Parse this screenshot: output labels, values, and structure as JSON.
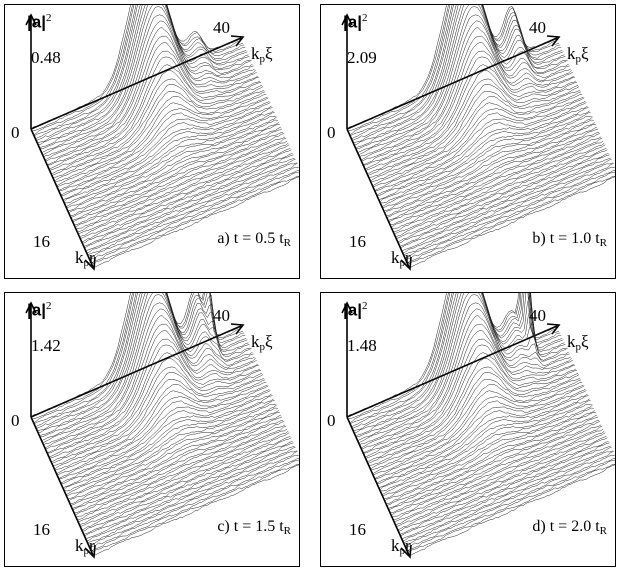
{
  "figure": {
    "y_axis_label": "|a|",
    "y_axis_exp": "2",
    "zero_label": "0",
    "xi_axis_max": "40",
    "xi_axis_label_k": "k",
    "xi_axis_label_sub": "p",
    "xi_axis_label_sym": "ξ",
    "r_axis_max": "16",
    "r_axis_label_k": "k",
    "r_axis_label_sub": "p",
    "r_axis_label_sym": "r",
    "caption_sub": "R"
  },
  "panels": [
    {
      "peak_label": "0.48",
      "caption": "a) t = 0.5 t",
      "secondary": 0.22,
      "spike": 0.0
    },
    {
      "peak_label": "2.09",
      "caption": "b) t = 1.0 t",
      "secondary": 0.45,
      "spike": 0.0
    },
    {
      "peak_label": "1.42",
      "caption": "c) t = 1.5 t",
      "secondary": 0.5,
      "spike": 0.35
    },
    {
      "peak_label": "1.48",
      "caption": "d) t = 2.0 t",
      "secondary": 0.3,
      "spike": 0.85
    }
  ]
}
